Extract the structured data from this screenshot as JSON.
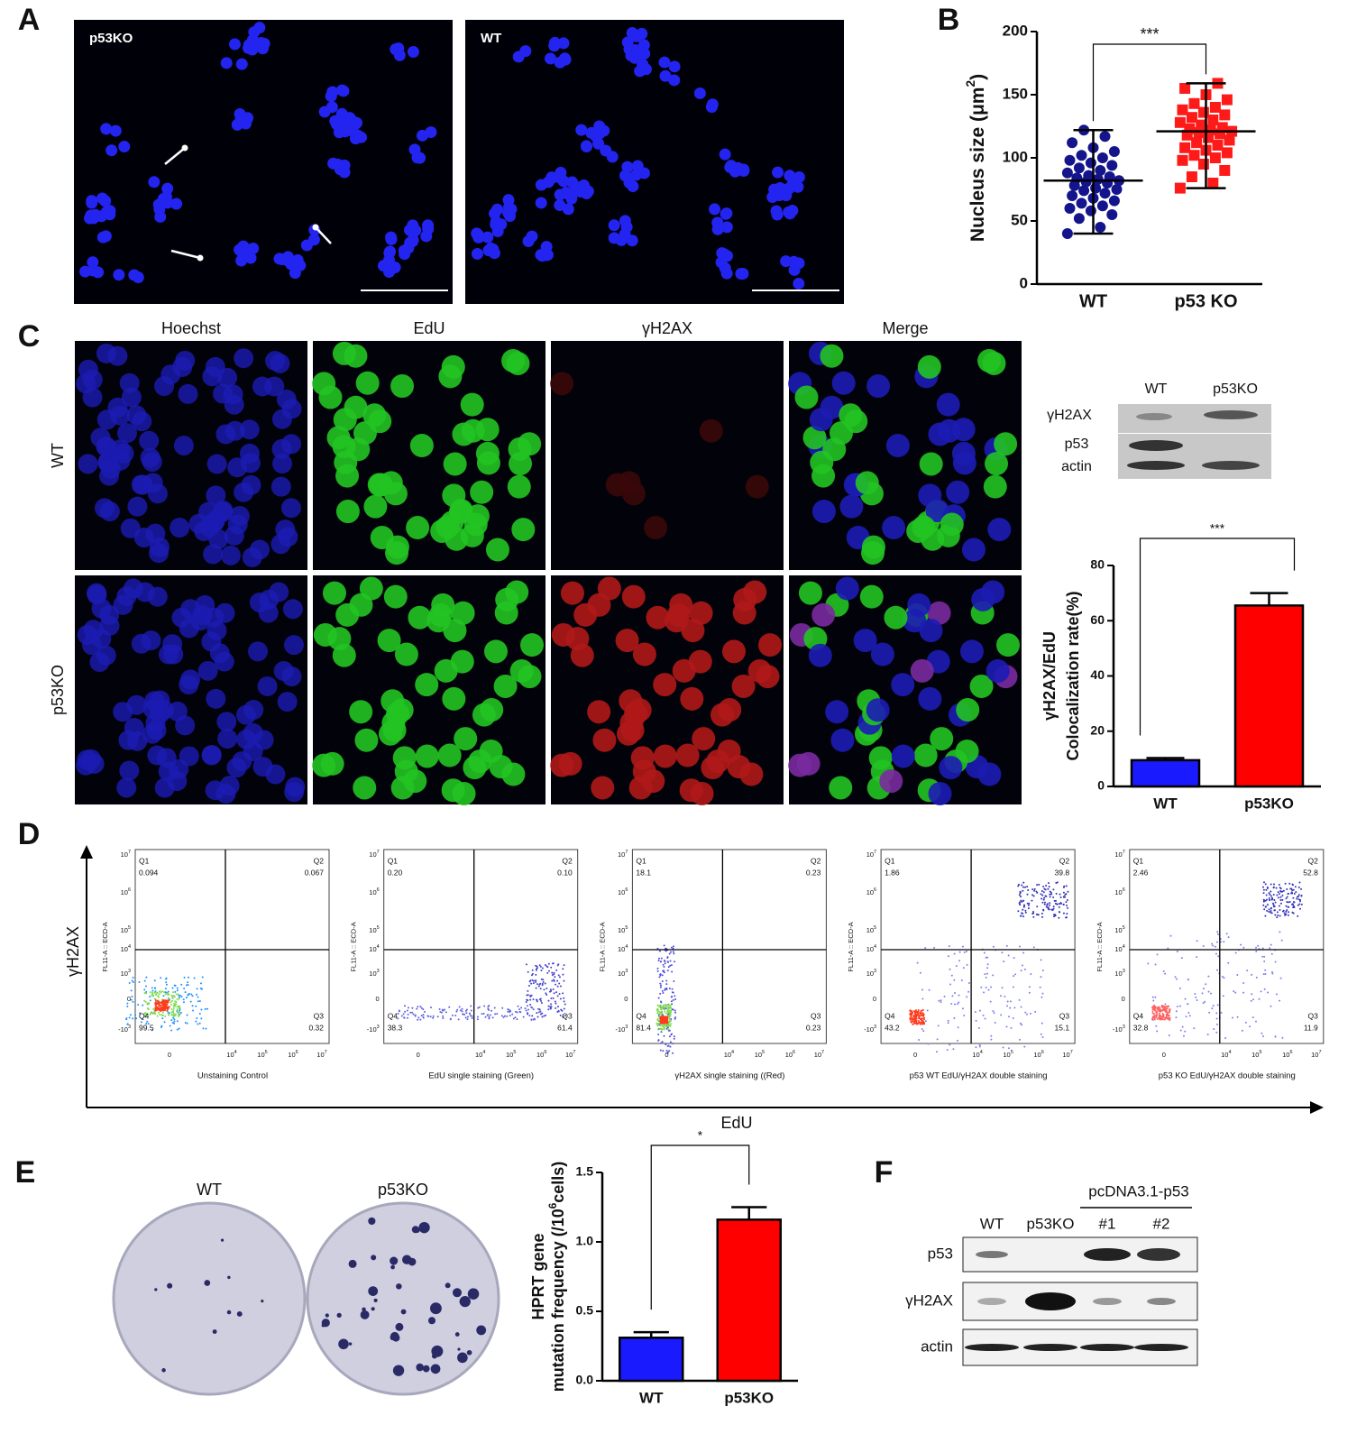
{
  "figure": {
    "panel_labels": [
      "A",
      "B",
      "C",
      "D",
      "E",
      "F"
    ],
    "A": {
      "images": [
        "p53KO",
        "WT"
      ]
    },
    "C": {
      "columns": [
        "Hoechst",
        "EdU",
        "γH2AX",
        "Merge"
      ],
      "rows": [
        "WT",
        "p53KO"
      ],
      "blot": {
        "lanes": [
          "WT",
          "p53KO"
        ],
        "bands": [
          "γH2AX",
          "p53",
          "actin"
        ]
      }
    },
    "D": {
      "y_axis": "γH2AX",
      "x_axis": "EdU",
      "plot_y_label": "FL11-A :: ECD-A",
      "y_ticks": [
        {
          "base": "10",
          "exp": "7"
        },
        {
          "base": "10",
          "exp": "6"
        },
        {
          "base": "10",
          "exp": "5"
        },
        {
          "base": "10",
          "exp": "4"
        },
        {
          "base": "10",
          "exp": "3"
        },
        {
          "base": "0"
        },
        {
          "base": "-10",
          "exp": "3"
        }
      ],
      "x_ticks": [
        {
          "base": "0"
        },
        {
          "base": "10",
          "exp": "4"
        },
        {
          "base": "10",
          "exp": "5"
        },
        {
          "base": "10",
          "exp": "6"
        },
        {
          "base": "10",
          "exp": "7"
        }
      ],
      "plots": [
        {
          "caption": "Unstaining Control",
          "quadrants": [
            [
              "Q1",
              "0.094"
            ],
            [
              "Q2",
              "0.067"
            ],
            [
              "Q3",
              "0.32"
            ],
            [
              "Q4",
              "99.5"
            ]
          ]
        },
        {
          "caption": "EdU  single staining  (Green)",
          "quadrants": [
            [
              "Q1",
              "0.20"
            ],
            [
              "Q2",
              "0.10"
            ],
            [
              "Q3",
              "61.4"
            ],
            [
              "Q4",
              "38.3"
            ]
          ]
        },
        {
          "caption": "γH2AX  single staining  ((Red)",
          "quadrants": [
            [
              "Q1",
              "18.1"
            ],
            [
              "Q2",
              "0.23"
            ],
            [
              "Q3",
              "0.23"
            ],
            [
              "Q4",
              "81.4"
            ]
          ]
        },
        {
          "caption": "p53 WT EdU/γH2AX  double  staining",
          "quadrants": [
            [
              "Q1",
              "1.86"
            ],
            [
              "Q2",
              "39.8"
            ],
            [
              "Q3",
              "15.1"
            ],
            [
              "Q4",
              "43.2"
            ]
          ]
        },
        {
          "caption": "p53 KO EdU/γH2AX  double staining",
          "quadrants": [
            [
              "Q1",
              "2.46"
            ],
            [
              "Q2",
              "52.8"
            ],
            [
              "Q3",
              "11.9"
            ],
            [
              "Q4",
              "32.8"
            ]
          ]
        }
      ]
    },
    "E": {
      "plates": [
        "WT",
        "p53KO"
      ]
    },
    "F": {
      "group": "pcDNA3.1-p53",
      "lanes": [
        "WT",
        "p53KO",
        "#1",
        "#2"
      ],
      "bands": [
        "p53",
        "γH2AX",
        "actin"
      ]
    }
  },
  "chart_data": [
    {
      "type": "strip",
      "categories": [
        "WT",
        "p53 KO"
      ],
      "colors": [
        "#14148c",
        "#ff1a1a"
      ],
      "y_label": [
        [
          {
            "text": "Nucleus size (μm"
          },
          {
            "text": "2",
            "sup": true
          },
          {
            "text": ")"
          }
        ]
      ],
      "ylim": [
        0,
        200
      ],
      "yticks": [
        0,
        50,
        100,
        150,
        200
      ],
      "significance": "***",
      "series": [
        {
          "name": "WT",
          "values": [
            40,
            45,
            52,
            55,
            58,
            60,
            62,
            64,
            66,
            68,
            70,
            72,
            74,
            75,
            76,
            78,
            80,
            81,
            82,
            83,
            84,
            85,
            86,
            88,
            90,
            92,
            94,
            96,
            98,
            100,
            102,
            105,
            108,
            112,
            117,
            122
          ],
          "mean": 82,
          "range": [
            40,
            122
          ]
        },
        {
          "name": "p53 KO",
          "values": [
            76,
            80,
            85,
            90,
            95,
            98,
            100,
            102,
            104,
            106,
            108,
            110,
            112,
            114,
            116,
            118,
            119,
            120,
            121,
            122,
            123,
            124,
            126,
            128,
            130,
            132,
            134,
            136,
            138,
            140,
            143,
            146,
            150,
            155,
            159
          ],
          "mean": 121,
          "range": [
            76,
            159
          ]
        }
      ]
    },
    {
      "type": "bar",
      "categories": [
        "WT",
        "p53KO"
      ],
      "colors": [
        "#1a1aff",
        "#ff0000"
      ],
      "y_label": [
        [
          {
            "text": "γH2AX/EdU"
          }
        ],
        [
          {
            "text": "Colocalization rate(%)"
          }
        ]
      ],
      "ylim": [
        0,
        80
      ],
      "yticks": [
        0,
        20,
        40,
        60,
        80
      ],
      "significance": "***",
      "values": [
        9.5,
        65.5
      ],
      "errors": [
        0.8,
        4.5
      ]
    },
    {
      "type": "bar",
      "categories": [
        "WT",
        "p53KO"
      ],
      "colors": [
        "#1a1aff",
        "#ff0000"
      ],
      "y_label": [
        [
          {
            "text": "HPRT gene"
          }
        ],
        [
          {
            "text": "mutation frequency (/10"
          },
          {
            "text": "6",
            "sup": true
          },
          {
            "text": "cells)"
          }
        ]
      ],
      "ylim": [
        0,
        1.5
      ],
      "yticks": [
        {
          "value": 0,
          "label": "0.0"
        },
        0.5,
        {
          "value": 1,
          "label": "1.0"
        },
        1.5
      ],
      "significance": "*",
      "values": [
        0.31,
        1.16
      ],
      "errors": [
        0.04,
        0.09
      ]
    }
  ]
}
